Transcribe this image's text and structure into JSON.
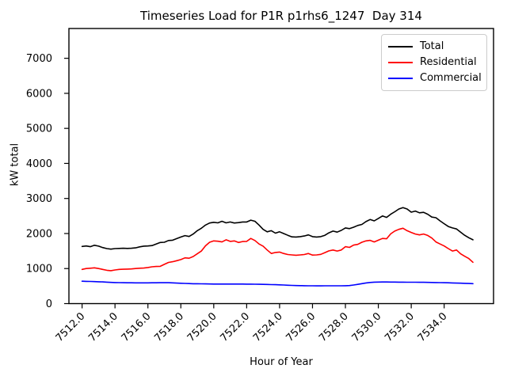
{
  "chart_data": {
    "type": "line",
    "title": "Timeseries Load for P1R p1rhs6_1247  Day 314",
    "xlabel": "Hour of Year",
    "ylabel": "kW total",
    "grid": false,
    "legend_position": "upper right",
    "xlim": [
      7511.2,
      7537.0
    ],
    "ylim": [
      0,
      7850
    ],
    "x_ticks": [
      7512,
      7514,
      7516,
      7518,
      7520,
      7522,
      7524,
      7526,
      7528,
      7530,
      7532,
      7534
    ],
    "x_tick_labels": [
      "7512.0",
      "7514.0",
      "7516.0",
      "7518.0",
      "7520.0",
      "7522.0",
      "7524.0",
      "7526.0",
      "7528.0",
      "7530.0",
      "7532.0",
      "7534.0"
    ],
    "y_ticks": [
      0,
      1000,
      2000,
      3000,
      4000,
      5000,
      6000,
      7000
    ],
    "y_tick_labels": [
      "0",
      "1000",
      "2000",
      "3000",
      "4000",
      "5000",
      "6000",
      "7000"
    ],
    "x_start": 7512.0,
    "x_step": 0.25,
    "series": [
      {
        "name": "Total",
        "color": "#000000",
        "values": [
          1630,
          1645,
          1625,
          1665,
          1640,
          1600,
          1570,
          1555,
          1570,
          1575,
          1580,
          1575,
          1580,
          1590,
          1620,
          1640,
          1645,
          1655,
          1700,
          1745,
          1750,
          1800,
          1810,
          1855,
          1900,
          1940,
          1915,
          1985,
          2080,
          2150,
          2240,
          2300,
          2320,
          2305,
          2350,
          2305,
          2330,
          2300,
          2310,
          2330,
          2330,
          2380,
          2350,
          2240,
          2120,
          2050,
          2080,
          2010,
          2050,
          2000,
          1950,
          1905,
          1900,
          1910,
          1930,
          1960,
          1910,
          1900,
          1910,
          1950,
          2020,
          2070,
          2040,
          2090,
          2160,
          2140,
          2180,
          2230,
          2260,
          2340,
          2400,
          2360,
          2430,
          2500,
          2460,
          2550,
          2620,
          2700,
          2740,
          2700,
          2610,
          2640,
          2590,
          2605,
          2550,
          2470,
          2450,
          2360,
          2280,
          2200,
          2160,
          2130,
          2040,
          1950,
          1880,
          1820
        ]
      },
      {
        "name": "Residential",
        "color": "#ff0000",
        "values": [
          975,
          1000,
          1010,
          1020,
          1000,
          975,
          950,
          940,
          960,
          975,
          980,
          985,
          990,
          1000,
          1010,
          1015,
          1030,
          1050,
          1060,
          1065,
          1120,
          1175,
          1195,
          1225,
          1255,
          1305,
          1295,
          1345,
          1420,
          1500,
          1650,
          1750,
          1790,
          1780,
          1760,
          1820,
          1775,
          1790,
          1745,
          1770,
          1775,
          1860,
          1800,
          1700,
          1640,
          1530,
          1430,
          1460,
          1470,
          1430,
          1400,
          1390,
          1380,
          1390,
          1400,
          1430,
          1385,
          1390,
          1405,
          1455,
          1505,
          1530,
          1500,
          1530,
          1625,
          1605,
          1670,
          1690,
          1750,
          1790,
          1805,
          1760,
          1810,
          1860,
          1850,
          1990,
          2070,
          2120,
          2150,
          2080,
          2030,
          1985,
          1960,
          1985,
          1945,
          1870,
          1760,
          1700,
          1645,
          1570,
          1500,
          1530,
          1420,
          1350,
          1285,
          1180
        ]
      },
      {
        "name": "Commercial",
        "color": "#0000ff",
        "values": [
          640,
          635,
          632,
          628,
          624,
          618,
          612,
          606,
          602,
          599,
          596,
          594,
          593,
          592,
          591,
          591,
          592,
          593,
          595,
          597,
          598,
          596,
          592,
          586,
          580,
          575,
          571,
          568,
          566,
          564,
          562,
          561,
          559,
          558,
          557,
          558,
          559,
          559,
          558,
          557,
          556,
          555,
          554,
          552,
          550,
          547,
          543,
          539,
          535,
          530,
          524,
          519,
          515,
          512,
          510,
          509,
          508,
          507,
          507,
          508,
          509,
          509,
          508,
          508,
          510,
          516,
          530,
          549,
          569,
          589,
          604,
          612,
          615,
          616,
          616,
          615,
          614,
          613,
          612,
          611,
          610,
          609,
          608,
          607,
          605,
          603,
          601,
          599,
          597,
          594,
          590,
          586,
          582,
          578,
          574,
          570
        ]
      }
    ]
  }
}
